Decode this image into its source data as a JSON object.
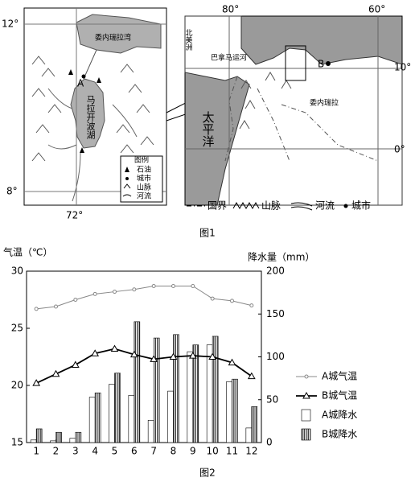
{
  "figure1": {
    "caption": "图1",
    "left_map": {
      "lat_top": "12°",
      "lat_bottom": "8°",
      "lon": "72°",
      "gulf": "委内瑞拉湾",
      "city": "A",
      "lake": "马拉开波湖",
      "legend_title": "图例",
      "legend": [
        "石油",
        "城市",
        "山脉",
        "河流"
      ]
    },
    "right_map": {
      "lon_left": "80°",
      "lon_right": "60°",
      "lat_top": "10°",
      "lat_bottom": "0°",
      "continent": "北美洲",
      "canal": "巴拿马运河",
      "city": "B",
      "ocean": "太平洋",
      "country": "委内瑞拉"
    },
    "legend": [
      "国界",
      "山脉",
      "河流",
      "城市"
    ]
  },
  "chart_data": {
    "type": "combo",
    "caption": "图2",
    "y_label": "气温（℃）",
    "y2_label": "降水量（mm）",
    "categories": [
      "1",
      "2",
      "3",
      "4",
      "5",
      "6",
      "7",
      "8",
      "9",
      "10",
      "11",
      "12"
    ],
    "ylim": [
      15,
      30
    ],
    "yticks": [
      15,
      20,
      25,
      30
    ],
    "y2lim": [
      0,
      200
    ],
    "y2ticks": [
      0,
      50,
      100,
      150,
      200
    ],
    "series": [
      {
        "name": "A城气温",
        "kind": "line",
        "marker": "circle",
        "color": "#888888",
        "axis": "y",
        "values": [
          26.7,
          26.9,
          27.5,
          28.0,
          28.2,
          28.4,
          28.7,
          28.7,
          28.7,
          27.6,
          27.4,
          27.0
        ]
      },
      {
        "name": "B城气温",
        "kind": "line",
        "marker": "triangle",
        "color": "#000000",
        "axis": "y",
        "values": [
          20.2,
          21.0,
          21.8,
          22.8,
          23.2,
          22.7,
          22.3,
          22.5,
          22.6,
          22.5,
          22.0,
          20.8
        ]
      },
      {
        "name": "A城降水",
        "kind": "bar",
        "pattern": "none",
        "color": "#ffffff",
        "axis": "y2",
        "values": [
          3,
          2,
          5,
          53,
          68,
          55,
          26,
          60,
          106,
          114,
          71,
          17
        ]
      },
      {
        "name": "B城降水",
        "kind": "bar",
        "pattern": "hatch",
        "color": "#444444",
        "axis": "y2",
        "values": [
          16,
          12,
          12,
          58,
          81,
          141,
          122,
          126,
          114,
          124,
          74,
          42
        ]
      }
    ]
  }
}
